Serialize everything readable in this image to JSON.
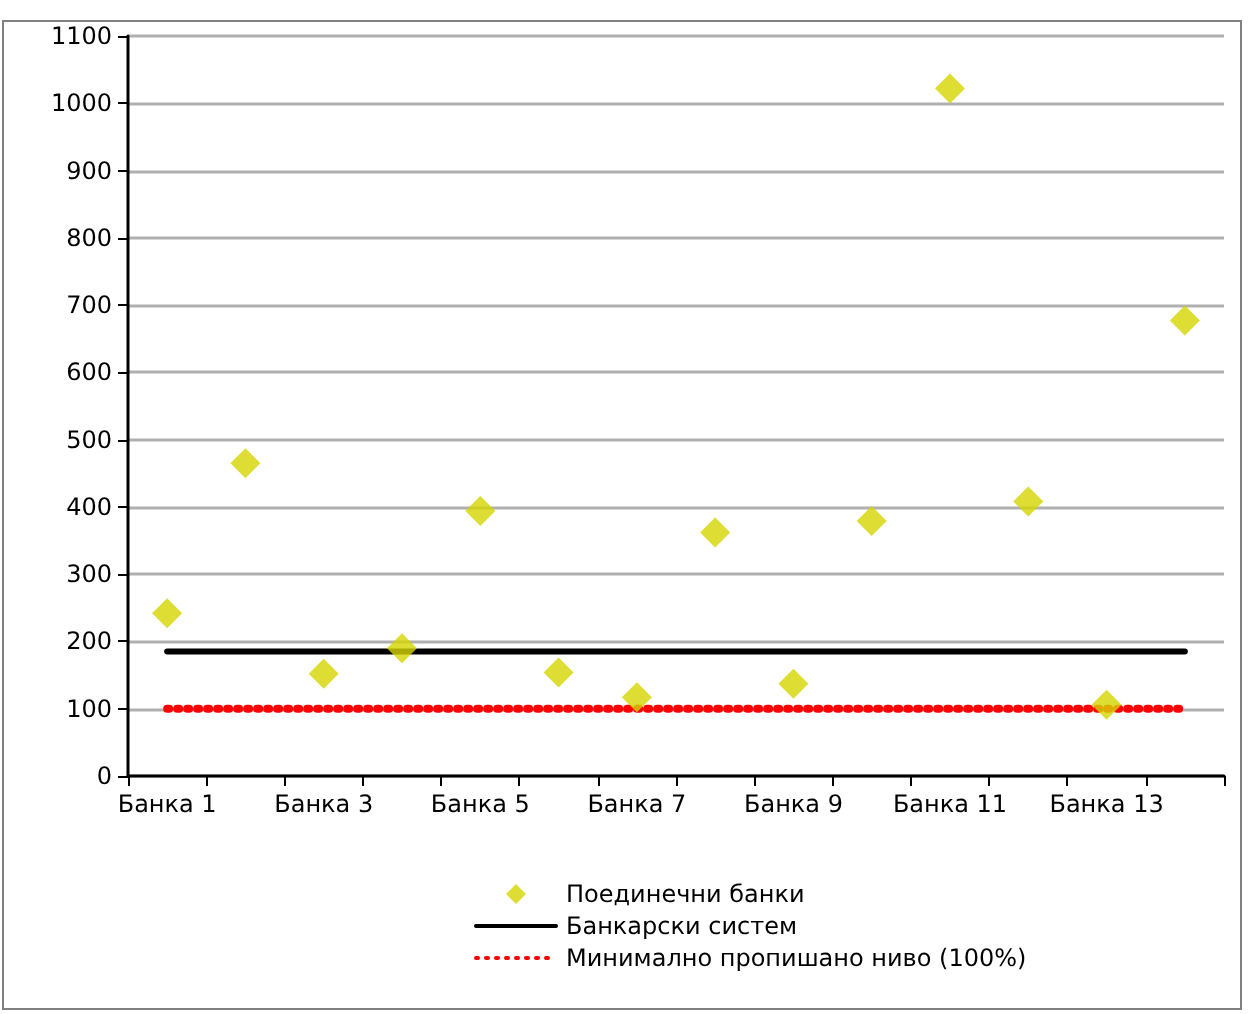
{
  "chart_data": {
    "type": "scatter",
    "categories": [
      "Банка 1",
      null,
      "Банка 3",
      null,
      "Банка 5",
      null,
      "Банка 7",
      null,
      "Банка 9",
      null,
      "Банка 11",
      null,
      "Банка 13",
      null
    ],
    "series": [
      {
        "name": "Поединечни банки",
        "type": "scatter",
        "color": "#d4d400",
        "marker": "diamond",
        "values": [
          242,
          465,
          152,
          190,
          394,
          154,
          117,
          362,
          137,
          379,
          1022,
          408,
          106,
          677
        ]
      },
      {
        "name": "Банкарски систем",
        "type": "line",
        "color": "#000000",
        "marker": "none",
        "line_style": "solid",
        "values": [
          185,
          185,
          185,
          185,
          185,
          185,
          185,
          185,
          185,
          185,
          185,
          185,
          185,
          185
        ]
      },
      {
        "name": "Минимално пропишано ниво (100%)",
        "type": "line",
        "color": "#ff0000",
        "marker": "none",
        "line_style": "dotted",
        "values": [
          100,
          100,
          100,
          100,
          100,
          100,
          100,
          100,
          100,
          100,
          100,
          100,
          100,
          100
        ]
      }
    ],
    "ylim": [
      0,
      1100
    ],
    "yticks": [
      0,
      100,
      200,
      300,
      400,
      500,
      600,
      700,
      800,
      900,
      {
        "value": 1000,
        "label": "1000"
      },
      {
        "value": 1100,
        "label": "1100"
      }
    ],
    "grid": "y",
    "legend": "bottom"
  }
}
